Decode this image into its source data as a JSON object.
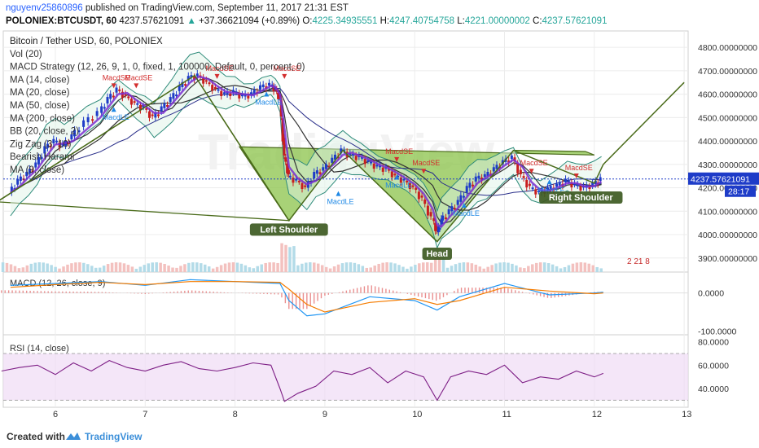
{
  "header": {
    "user": "nguyenv25860896",
    "published": "published on TradingView.com, September 11, 2017 21:31 EST",
    "symbol": "POLONIEX:BTCUSDT, 60",
    "last": "4237.57621091",
    "change": "+37.36621094 (+0.89%)",
    "o_label": "O:",
    "o_value": "4225.34935551",
    "h_label": "H:",
    "h_value": "4247.40754758",
    "l_label": "L:",
    "l_value": "4221.00000002",
    "c_label": "C:",
    "c_value": "4237.57621091"
  },
  "legend": [
    "Bitcoin / Tether USD, 60, POLONIEX",
    "Vol (20)",
    "MACD Strategy (12, 26, 9, 1, 0, fixed, 1, 100000, Default, 0, percent, 0)",
    "MA (14, close)",
    "MA (20, close)",
    "MA (50, close)",
    "MA (200, close)",
    "BB (20, close, 2)",
    "Zig Zag (3, 10)",
    "Bearish Harami",
    "MA (9, close)"
  ],
  "colors": {
    "up": "#26a69a",
    "down": "#ef5350",
    "bar_blue": "#1e3cc8",
    "bar_red": "#c81e1e",
    "ma_purple": "#7a2fd0",
    "ma_dark": "#333333",
    "ma_navy": "#2a2f8a",
    "bb": "#2e8b7a",
    "pattern_fill": "#8bc34a",
    "pattern_line": "#4a6b1a",
    "macd": "#2196f3",
    "signal": "#f57c00",
    "rsi": "#7e1f86",
    "rsi_band": "#f0dcf5"
  },
  "chart_data": [
    {
      "type": "candlestick",
      "title": "Bitcoin / Tether USD, 60, POLONIEX",
      "ylim": [
        3840,
        4870
      ],
      "y_ticks": [
        "4800.00000000",
        "4700.00000000",
        "4600.00000000",
        "4500.00000000",
        "4400.00000000",
        "4300.00000000",
        "4200.00000000",
        "4100.00000000",
        "4000.00000000",
        "3900.00000000"
      ],
      "last_price_label": "4237.57621091",
      "countdown_label": "28:17",
      "x_ticks": [
        "6",
        "7",
        "8",
        "9",
        "10",
        "11",
        "12",
        "13"
      ],
      "path_price": [
        [
          5.5,
          4180
        ],
        [
          5.6,
          4230
        ],
        [
          5.7,
          4260
        ],
        [
          5.8,
          4300
        ],
        [
          5.9,
          4370
        ],
        [
          6.0,
          4400
        ],
        [
          6.1,
          4380
        ],
        [
          6.2,
          4420
        ],
        [
          6.35,
          4480
        ],
        [
          6.5,
          4520
        ],
        [
          6.6,
          4580
        ],
        [
          6.7,
          4620
        ],
        [
          6.8,
          4590
        ],
        [
          6.9,
          4560
        ],
        [
          7.0,
          4540
        ],
        [
          7.1,
          4500
        ],
        [
          7.2,
          4540
        ],
        [
          7.3,
          4580
        ],
        [
          7.4,
          4630
        ],
        [
          7.5,
          4670
        ],
        [
          7.6,
          4680
        ],
        [
          7.7,
          4650
        ],
        [
          7.8,
          4620
        ],
        [
          7.9,
          4600
        ],
        [
          8.0,
          4610
        ],
        [
          8.1,
          4590
        ],
        [
          8.2,
          4600
        ],
        [
          8.3,
          4630
        ],
        [
          8.4,
          4640
        ],
        [
          8.45,
          4620
        ],
        [
          8.5,
          4580
        ],
        [
          8.55,
          4330
        ],
        [
          8.6,
          4250
        ],
        [
          8.7,
          4230
        ],
        [
          8.8,
          4200
        ],
        [
          8.9,
          4260
        ],
        [
          9.0,
          4280
        ],
        [
          9.1,
          4320
        ],
        [
          9.2,
          4360
        ],
        [
          9.3,
          4340
        ],
        [
          9.4,
          4330
        ],
        [
          9.5,
          4310
        ],
        [
          9.6,
          4290
        ],
        [
          9.7,
          4280
        ],
        [
          9.8,
          4250
        ],
        [
          9.9,
          4230
        ],
        [
          10.0,
          4200
        ],
        [
          10.1,
          4150
        ],
        [
          10.2,
          4070
        ],
        [
          10.25,
          4010
        ],
        [
          10.3,
          4060
        ],
        [
          10.4,
          4100
        ],
        [
          10.5,
          4140
        ],
        [
          10.6,
          4200
        ],
        [
          10.7,
          4240
        ],
        [
          10.8,
          4250
        ],
        [
          10.9,
          4280
        ],
        [
          11.0,
          4310
        ],
        [
          11.1,
          4330
        ],
        [
          11.2,
          4250
        ],
        [
          11.3,
          4200
        ],
        [
          11.4,
          4180
        ],
        [
          11.5,
          4195
        ],
        [
          11.6,
          4210
        ],
        [
          11.7,
          4230
        ],
        [
          11.8,
          4210
        ],
        [
          11.9,
          4200
        ],
        [
          12.0,
          4215
        ],
        [
          12.08,
          4237
        ]
      ],
      "zigzag": [
        [
          5.35,
          4140
        ],
        [
          7.55,
          4680
        ],
        [
          8.6,
          4060
        ],
        [
          9.2,
          4360
        ],
        [
          10.25,
          3970
        ],
        [
          11.1,
          4360
        ],
        [
          12.0,
          4220
        ],
        [
          12.1,
          4300
        ],
        [
          13.0,
          4650
        ]
      ],
      "head_shoulders": [
        [
          8.05,
          4375
        ],
        [
          8.6,
          4060
        ],
        [
          9.2,
          4360
        ],
        [
          10.25,
          3970
        ],
        [
          11.1,
          4360
        ],
        [
          11.9,
          4355
        ],
        [
          12.0,
          4340
        ]
      ],
      "annotations": [
        "Left Shoulder",
        "Head",
        "Right Shoulder"
      ],
      "signals": [
        {
          "text": "MacdSE",
          "x": 6.65,
          "y": 4660
        },
        {
          "text": "MacdSE",
          "x": 6.9,
          "y": 4660
        },
        {
          "text": "MacdSE",
          "x": 8.55,
          "y": 4700
        },
        {
          "text": "MacdSE",
          "x": 7.8,
          "y": 4700
        },
        {
          "text": "MacdLE",
          "x": 6.65,
          "y": 4490
        },
        {
          "text": "MacdLE",
          "x": 8.35,
          "y": 4555
        },
        {
          "text": "MacdLE",
          "x": 9.15,
          "y": 4130
        },
        {
          "text": "MacdLE",
          "x": 9.8,
          "y": 4200
        },
        {
          "text": "MacdSE",
          "x": 9.8,
          "y": 4345
        },
        {
          "text": "MacdSE",
          "x": 10.1,
          "y": 4295
        },
        {
          "text": "MacdLE",
          "x": 10.55,
          "y": 4080
        },
        {
          "text": "MacdSE",
          "x": 11.3,
          "y": 4295
        },
        {
          "text": "MacdSE",
          "x": 11.8,
          "y": 4275
        },
        {
          "text": "MacdLE",
          "x": 11.5,
          "y": 4180
        }
      ]
    },
    {
      "type": "line",
      "title": "MACD (12, 26, close, 9)",
      "ylim": [
        -110,
        55
      ],
      "y_ticks": [
        "0.0000",
        "-100.0000"
      ],
      "series": [
        {
          "name": "MACD",
          "x": [
            5.5,
            6.0,
            6.5,
            7.0,
            7.5,
            8.0,
            8.5,
            8.6,
            8.8,
            9.0,
            9.5,
            10.0,
            10.25,
            10.5,
            11.0,
            11.5,
            12.0,
            12.1
          ],
          "y": [
            20,
            25,
            30,
            20,
            35,
            30,
            25,
            -20,
            -60,
            -55,
            -10,
            -20,
            -45,
            -10,
            25,
            -5,
            0,
            2
          ]
        },
        {
          "name": "Signal",
          "x": [
            5.5,
            6.0,
            6.5,
            7.0,
            7.5,
            8.0,
            8.5,
            8.6,
            8.8,
            9.0,
            9.5,
            10.0,
            10.25,
            10.5,
            11.0,
            11.5,
            12.0,
            12.1
          ],
          "y": [
            15,
            22,
            28,
            22,
            30,
            30,
            28,
            10,
            -30,
            -50,
            -25,
            -15,
            -30,
            -20,
            15,
            5,
            -2,
            0
          ]
        }
      ]
    },
    {
      "type": "line",
      "title": "RSI (14, close)",
      "ylim": [
        24,
        86
      ],
      "y_ticks": [
        "80.0000",
        "60.0000",
        "40.0000"
      ],
      "band": [
        30,
        70
      ],
      "series": [
        {
          "name": "RSI",
          "x": [
            5.4,
            5.6,
            5.8,
            6.0,
            6.2,
            6.4,
            6.6,
            6.8,
            7.0,
            7.2,
            7.4,
            7.6,
            7.8,
            8.0,
            8.2,
            8.4,
            8.5,
            8.55,
            8.7,
            8.9,
            9.1,
            9.3,
            9.5,
            9.7,
            9.9,
            10.1,
            10.25,
            10.4,
            10.6,
            10.8,
            11.0,
            11.2,
            11.4,
            11.6,
            11.8,
            12.0,
            12.1
          ],
          "y": [
            55,
            58,
            60,
            52,
            62,
            55,
            64,
            58,
            55,
            60,
            63,
            57,
            55,
            58,
            62,
            60,
            40,
            29,
            36,
            42,
            55,
            52,
            58,
            45,
            55,
            50,
            30,
            50,
            55,
            52,
            60,
            45,
            50,
            48,
            55,
            50,
            53
          ]
        }
      ]
    }
  ],
  "watermark": "TradingView",
  "footer": {
    "created_with": "Created with",
    "brand": "TradingView"
  },
  "badges": "2 21 8"
}
